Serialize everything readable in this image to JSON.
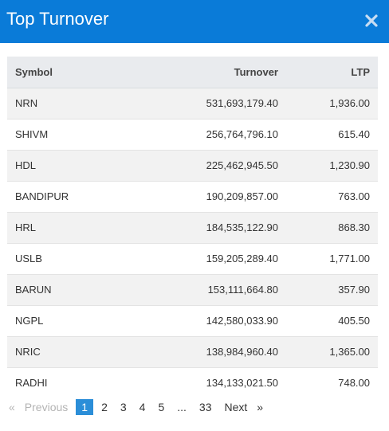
{
  "modal": {
    "title": "Top Turnover",
    "close_icon": "close-icon"
  },
  "table": {
    "headers": {
      "symbol": "Symbol",
      "turnover": "Turnover",
      "ltp": "LTP"
    },
    "rows": [
      {
        "symbol": "NRN",
        "turnover": "531,693,179.40",
        "ltp": "1,936.00"
      },
      {
        "symbol": "SHIVM",
        "turnover": "256,764,796.10",
        "ltp": "615.40"
      },
      {
        "symbol": "HDL",
        "turnover": "225,462,945.50",
        "ltp": "1,230.90"
      },
      {
        "symbol": "BANDIPUR",
        "turnover": "190,209,857.00",
        "ltp": "763.00"
      },
      {
        "symbol": "HRL",
        "turnover": "184,535,122.90",
        "ltp": "868.30"
      },
      {
        "symbol": "USLB",
        "turnover": "159,205,289.40",
        "ltp": "1,771.00"
      },
      {
        "symbol": "BARUN",
        "turnover": "153,111,664.80",
        "ltp": "357.90"
      },
      {
        "symbol": "NGPL",
        "turnover": "142,580,033.90",
        "ltp": "405.50"
      },
      {
        "symbol": "NRIC",
        "turnover": "138,984,960.40",
        "ltp": "1,365.00"
      },
      {
        "symbol": "RADHI",
        "turnover": "134,133,021.50",
        "ltp": "748.00"
      }
    ]
  },
  "pagination": {
    "first_arrow": "«",
    "previous": "Previous",
    "pages": [
      "1",
      "2",
      "3",
      "4",
      "5"
    ],
    "current": "1",
    "ellipsis": "...",
    "last_page": "33",
    "next": "Next",
    "last_arrow": "»"
  },
  "colors": {
    "header_bg": "#0a7bd8",
    "active_page": "#2b8ed8"
  }
}
